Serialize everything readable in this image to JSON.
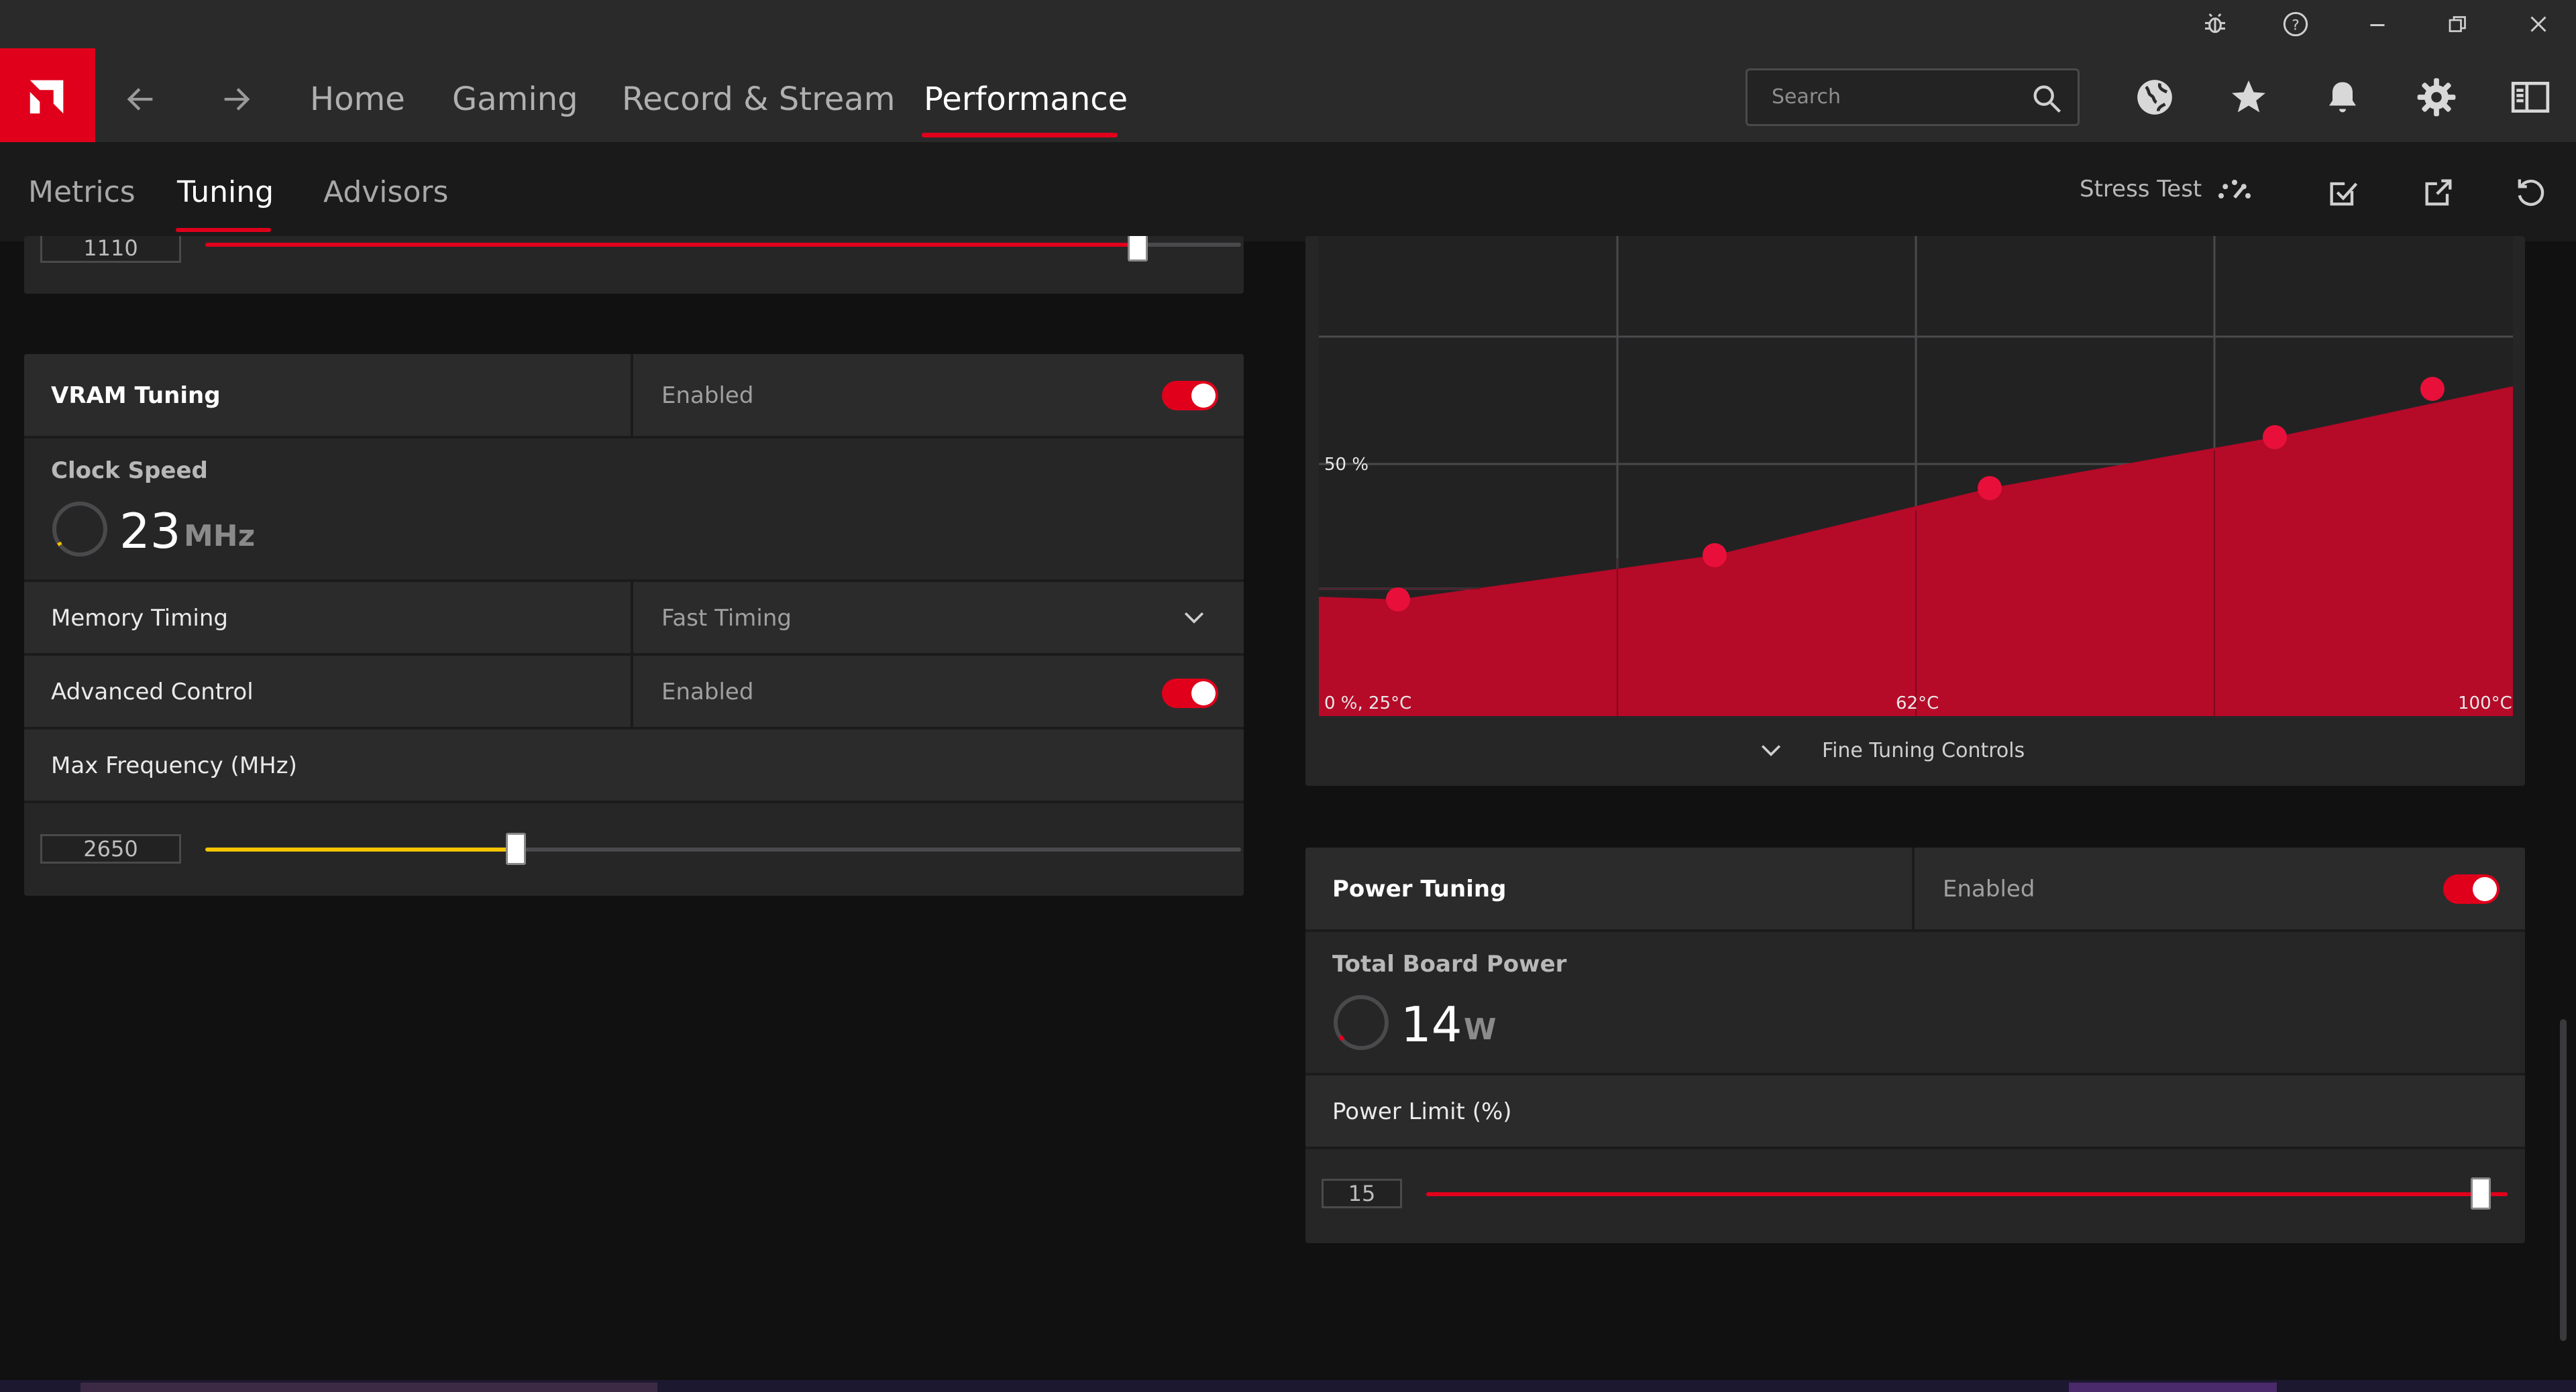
{
  "nav": {
    "items": [
      "Home",
      "Gaming",
      "Record & Stream",
      "Performance"
    ],
    "active": "Performance"
  },
  "search": {
    "placeholder": "Search"
  },
  "subtabs": {
    "items": [
      "Metrics",
      "Tuning",
      "Advisors"
    ],
    "active": "Tuning"
  },
  "tools": {
    "stress_test": "Stress Test"
  },
  "gpu_clock_slider": {
    "value": "1110",
    "fraction": 0.9
  },
  "vram": {
    "title": "VRAM Tuning",
    "state": "Enabled",
    "clock_speed_label": "Clock Speed",
    "clock_speed_value": "23",
    "clock_speed_unit": "MHz",
    "memory_timing_label": "Memory Timing",
    "memory_timing_value": "Fast Timing",
    "advanced_control_label": "Advanced Control",
    "advanced_control_value": "Enabled",
    "max_freq_label": "Max Frequency (MHz)",
    "max_freq_value": "2650",
    "max_freq_fraction": 0.3
  },
  "fan_curve": {
    "y_mid_label": "50 %",
    "x_label_left": "0 %, 25°C",
    "x_label_mid": "62°C",
    "x_label_right": "100°C",
    "fine_tuning_label": "Fine Tuning Controls"
  },
  "power": {
    "title": "Power Tuning",
    "state": "Enabled",
    "tbp_label": "Total Board Power",
    "tbp_value": "14",
    "tbp_unit": "W",
    "limit_label": "Power Limit (%)",
    "limit_value": "15",
    "limit_fraction": 1.0
  },
  "colors": {
    "accent": "#e0001b",
    "yellow": "#f5c400",
    "panel": "#262627",
    "background": "#111112"
  },
  "icons": [
    "bug-icon",
    "help-icon",
    "minimize-icon",
    "restore-icon",
    "close-icon",
    "back-arrow-icon",
    "forward-arrow-icon",
    "search-icon",
    "globe-icon",
    "star-icon",
    "bell-icon",
    "gear-icon",
    "sidebar-icon",
    "speedometer-icon",
    "apply-icon",
    "export-icon",
    "reset-icon",
    "chevron-down-icon"
  ]
}
